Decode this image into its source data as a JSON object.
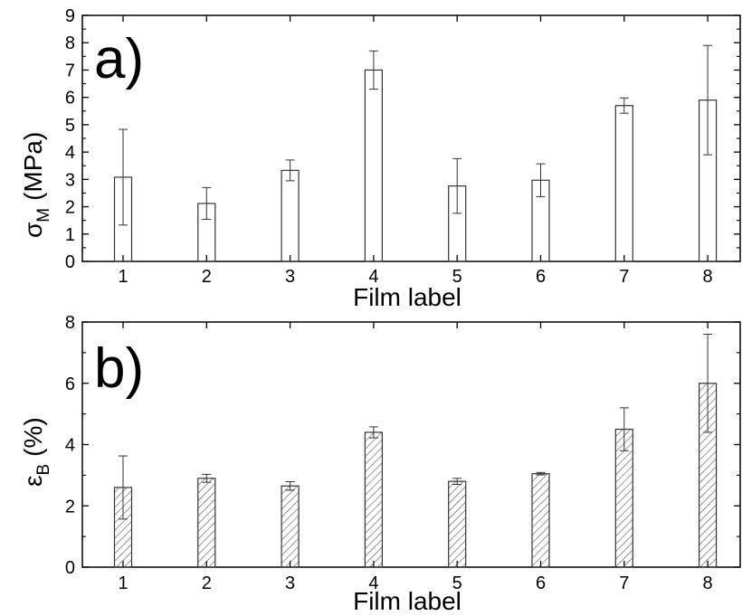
{
  "chart_data": [
    {
      "type": "bar",
      "panel_label": "a)",
      "ylabel": {
        "symbol": "σ",
        "subscript": "M",
        "unit": "(MPa)"
      },
      "xlabel": "Film label",
      "categories": [
        "1",
        "2",
        "3",
        "4",
        "5",
        "6",
        "7",
        "8"
      ],
      "values": [
        3.08,
        2.12,
        3.33,
        7.0,
        2.76,
        2.97,
        5.7,
        5.9
      ],
      "errors": [
        1.75,
        0.58,
        0.38,
        0.7,
        1.0,
        0.6,
        0.28,
        2.0
      ],
      "ylim": [
        0,
        9
      ],
      "yticks": [
        "0",
        "1",
        "2",
        "3",
        "4",
        "5",
        "6",
        "7",
        "8",
        "9"
      ],
      "fill": "none",
      "grid": false,
      "legend": false
    },
    {
      "type": "bar",
      "panel_label": "b)",
      "ylabel": {
        "symbol": "ε",
        "subscript": "B",
        "unit": "(%)"
      },
      "xlabel": "Film label",
      "categories": [
        "1",
        "2",
        "3",
        "4",
        "5",
        "6",
        "7",
        "8"
      ],
      "values": [
        2.6,
        2.9,
        2.65,
        4.4,
        2.8,
        3.05,
        4.5,
        6.0
      ],
      "errors": [
        1.03,
        0.13,
        0.14,
        0.18,
        0.1,
        0.04,
        0.7,
        1.6
      ],
      "ylim": [
        0,
        8
      ],
      "yticks": [
        "0",
        "2",
        "4",
        "6",
        "8"
      ],
      "fill": "diagonal-hatch",
      "grid": false,
      "legend": false
    }
  ],
  "colors": {
    "axis": "#000000",
    "bar_stroke": "#333333",
    "hatch": "#555555",
    "background": "#ffffff"
  }
}
